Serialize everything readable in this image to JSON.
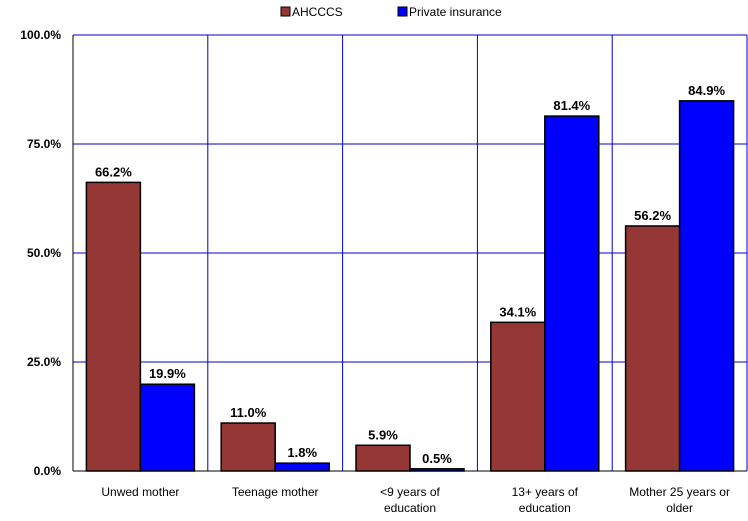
{
  "chart_data": {
    "type": "bar",
    "categories": [
      [
        "Unwed mother"
      ],
      [
        "Teenage mother"
      ],
      [
        "<9 years of",
        "education"
      ],
      [
        "13+ years of",
        "education"
      ],
      [
        "Mother 25 years or",
        "older"
      ]
    ],
    "series": [
      {
        "name": "AHCCCS",
        "color": "#953735",
        "values": [
          66.2,
          11.0,
          5.9,
          34.1,
          56.2
        ],
        "labels": [
          "66.2%",
          "11.0%",
          "5.9%",
          "34.1%",
          "56.2%"
        ]
      },
      {
        "name": "Private insurance",
        "color": "#0000ff",
        "values": [
          19.9,
          1.8,
          0.5,
          81.4,
          84.9
        ],
        "labels": [
          "19.9%",
          "1.8%",
          "0.5%",
          "81.4%",
          "84.9%"
        ]
      }
    ],
    "ylim": [
      0,
      100
    ],
    "yticks": [
      0,
      25,
      50,
      75,
      100
    ],
    "ytick_labels": [
      "0.0%",
      "25.0%",
      "50.0%",
      "75.0%",
      "100.0%"
    ],
    "grid": true,
    "grid_color": "#0000cc",
    "legend_position": "top-center"
  }
}
